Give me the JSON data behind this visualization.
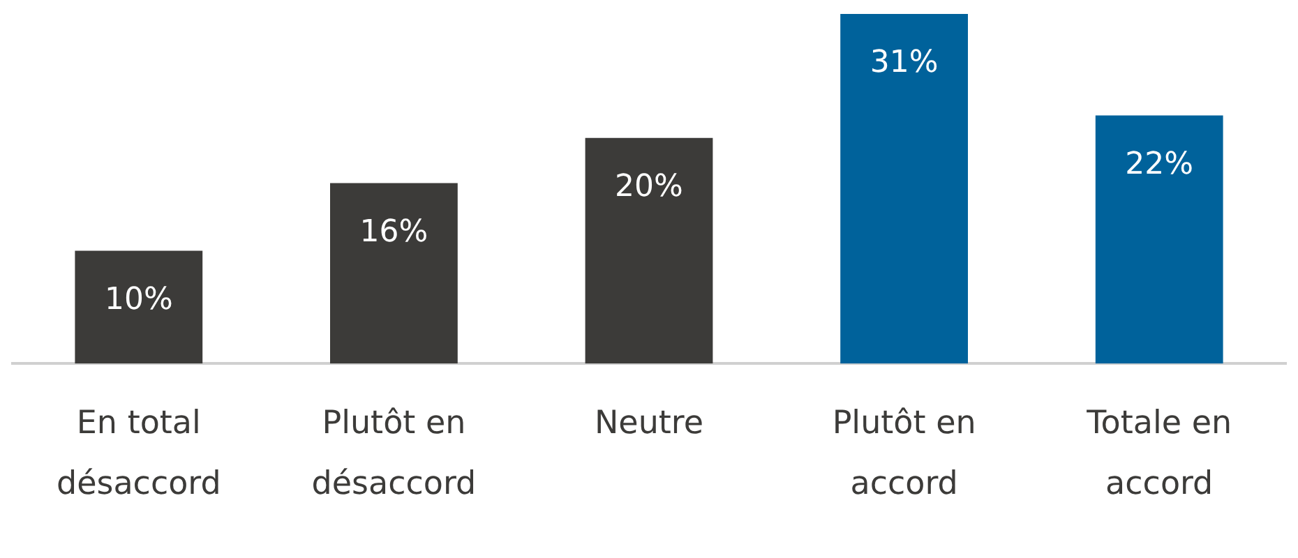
{
  "chart_data": {
    "type": "bar",
    "categories": [
      "En total désaccord",
      "Plutôt en désaccord",
      "Neutre",
      "Plutôt en accord",
      "Totale en accord"
    ],
    "values": [
      10,
      16,
      20,
      31,
      22
    ],
    "colors": [
      "#3c3b39",
      "#3c3b39",
      "#3c3b39",
      "#00629b",
      "#00629b"
    ],
    "value_labels": [
      "10%",
      "16%",
      "20%",
      "31%",
      "22%"
    ],
    "grid": false,
    "legend": false
  }
}
